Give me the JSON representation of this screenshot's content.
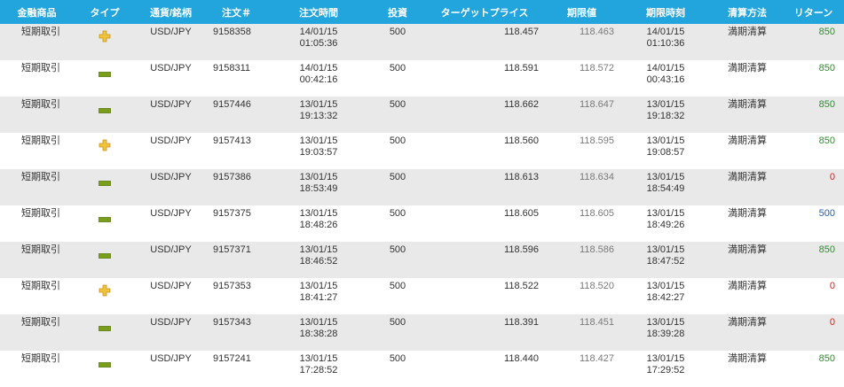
{
  "colors": {
    "header_bg": "#21a5dc",
    "row_alt": "#e9e9e9",
    "plus_icon": "#f0c43a",
    "minus_icon": "#7a9e1c",
    "return_850": "#2a8f2a",
    "return_500": "#1f5fb5",
    "return_0": "#e0201a"
  },
  "headers": [
    "金融商品",
    "タイプ",
    "通貨/銘柄",
    "注文＃",
    "注文時間",
    "投資",
    "ターゲットプライス",
    "期限値",
    "期限時刻",
    "清算方法",
    "リターン"
  ],
  "rows": [
    {
      "product": "短期取引",
      "type": "plus",
      "type_icon": "plus-icon",
      "pair": "USD/JPY",
      "order": "9158358",
      "time_date": "14/01/15",
      "time_clock": "01:05:36",
      "investment": "500",
      "target": "118.457",
      "expiry_value": "118.463",
      "expiry_date": "14/01/15",
      "expiry_clock": "01:10:36",
      "method": "満期清算",
      "return": "850",
      "return_color": "#2a8f2a"
    },
    {
      "product": "短期取引",
      "type": "minus",
      "type_icon": "minus-icon",
      "pair": "USD/JPY",
      "order": "9158311",
      "time_date": "14/01/15",
      "time_clock": "00:42:16",
      "investment": "500",
      "target": "118.591",
      "expiry_value": "118.572",
      "expiry_date": "14/01/15",
      "expiry_clock": "00:43:16",
      "method": "満期清算",
      "return": "850",
      "return_color": "#2a8f2a"
    },
    {
      "product": "短期取引",
      "type": "minus",
      "type_icon": "minus-icon",
      "pair": "USD/JPY",
      "order": "9157446",
      "time_date": "13/01/15",
      "time_clock": "19:13:32",
      "investment": "500",
      "target": "118.662",
      "expiry_value": "118.647",
      "expiry_date": "13/01/15",
      "expiry_clock": "19:18:32",
      "method": "満期清算",
      "return": "850",
      "return_color": "#2a8f2a"
    },
    {
      "product": "短期取引",
      "type": "plus",
      "type_icon": "plus-icon",
      "pair": "USD/JPY",
      "order": "9157413",
      "time_date": "13/01/15",
      "time_clock": "19:03:57",
      "investment": "500",
      "target": "118.560",
      "expiry_value": "118.595",
      "expiry_date": "13/01/15",
      "expiry_clock": "19:08:57",
      "method": "満期清算",
      "return": "850",
      "return_color": "#2a8f2a"
    },
    {
      "product": "短期取引",
      "type": "minus",
      "type_icon": "minus-icon",
      "pair": "USD/JPY",
      "order": "9157386",
      "time_date": "13/01/15",
      "time_clock": "18:53:49",
      "investment": "500",
      "target": "118.613",
      "expiry_value": "118.634",
      "expiry_date": "13/01/15",
      "expiry_clock": "18:54:49",
      "method": "満期清算",
      "return": "0",
      "return_color": "#e0201a"
    },
    {
      "product": "短期取引",
      "type": "minus",
      "type_icon": "minus-icon",
      "pair": "USD/JPY",
      "order": "9157375",
      "time_date": "13/01/15",
      "time_clock": "18:48:26",
      "investment": "500",
      "target": "118.605",
      "expiry_value": "118.605",
      "expiry_date": "13/01/15",
      "expiry_clock": "18:49:26",
      "method": "満期清算",
      "return": "500",
      "return_color": "#1f5fb5"
    },
    {
      "product": "短期取引",
      "type": "minus",
      "type_icon": "minus-icon",
      "pair": "USD/JPY",
      "order": "9157371",
      "time_date": "13/01/15",
      "time_clock": "18:46:52",
      "investment": "500",
      "target": "118.596",
      "expiry_value": "118.586",
      "expiry_date": "13/01/15",
      "expiry_clock": "18:47:52",
      "method": "満期清算",
      "return": "850",
      "return_color": "#2a8f2a"
    },
    {
      "product": "短期取引",
      "type": "plus",
      "type_icon": "plus-icon",
      "pair": "USD/JPY",
      "order": "9157353",
      "time_date": "13/01/15",
      "time_clock": "18:41:27",
      "investment": "500",
      "target": "118.522",
      "expiry_value": "118.520",
      "expiry_date": "13/01/15",
      "expiry_clock": "18:42:27",
      "method": "満期清算",
      "return": "0",
      "return_color": "#e0201a"
    },
    {
      "product": "短期取引",
      "type": "minus",
      "type_icon": "minus-icon",
      "pair": "USD/JPY",
      "order": "9157343",
      "time_date": "13/01/15",
      "time_clock": "18:38:28",
      "investment": "500",
      "target": "118.391",
      "expiry_value": "118.451",
      "expiry_date": "13/01/15",
      "expiry_clock": "18:39:28",
      "method": "満期清算",
      "return": "0",
      "return_color": "#e0201a"
    },
    {
      "product": "短期取引",
      "type": "minus",
      "type_icon": "minus-icon",
      "pair": "USD/JPY",
      "order": "9157241",
      "time_date": "13/01/15",
      "time_clock": "17:28:52",
      "investment": "500",
      "target": "118.440",
      "expiry_value": "118.427",
      "expiry_date": "13/01/15",
      "expiry_clock": "17:29:52",
      "method": "満期清算",
      "return": "850",
      "return_color": "#2a8f2a"
    }
  ]
}
